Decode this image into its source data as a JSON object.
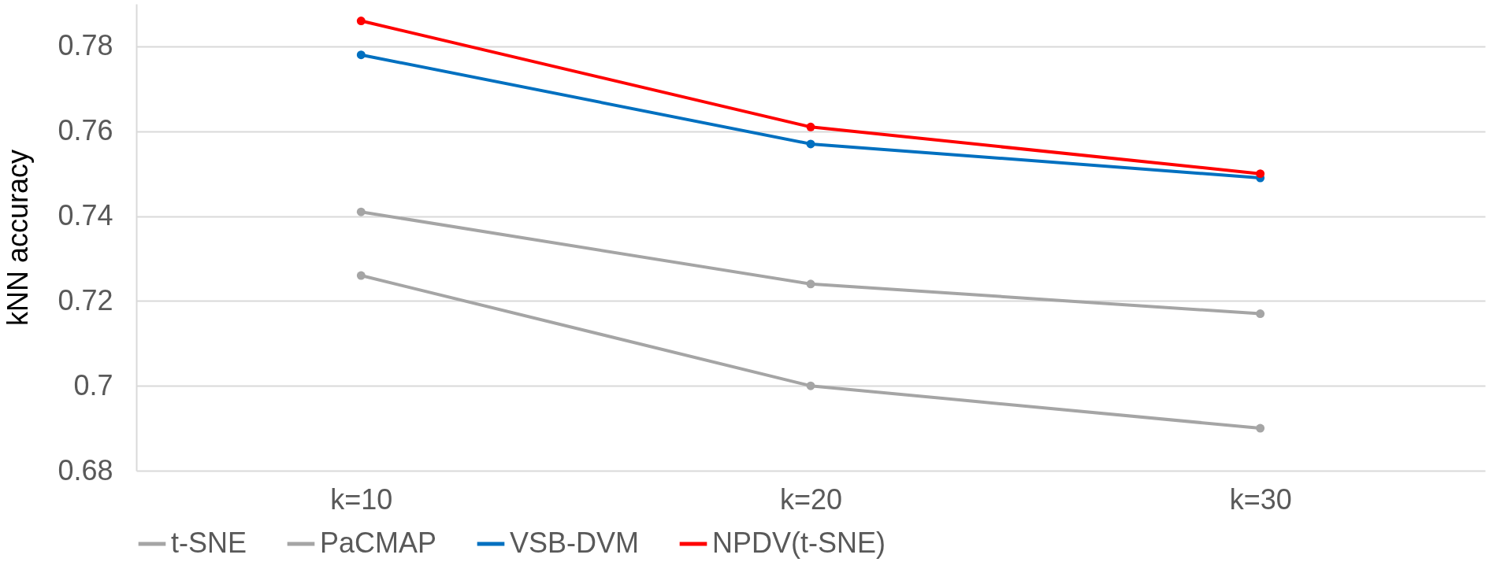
{
  "chart_data": {
    "type": "line",
    "ylabel": "kNN accuracy",
    "categories": [
      "k=10",
      "k=20",
      "k=30"
    ],
    "series": [
      {
        "name": "t-SNE",
        "color": "#a5a5a5",
        "values": [
          0.726,
          0.7,
          0.69
        ]
      },
      {
        "name": "PaCMAP",
        "color": "#a5a5a5",
        "values": [
          0.741,
          0.724,
          0.717
        ]
      },
      {
        "name": "VSB-DVM",
        "color": "#0070c0",
        "values": [
          0.778,
          0.757,
          0.749
        ]
      },
      {
        "name": "NPDV(t-SNE)",
        "color": "#ff0000",
        "values": [
          0.786,
          0.761,
          0.75
        ]
      }
    ],
    "ylim": [
      0.68,
      0.79
    ],
    "yticks": [
      0.68,
      0.7,
      0.72,
      0.74,
      0.76,
      0.78
    ],
    "grid": "y",
    "legend": "bottom",
    "marker": "circle",
    "line_style": "solid"
  }
}
